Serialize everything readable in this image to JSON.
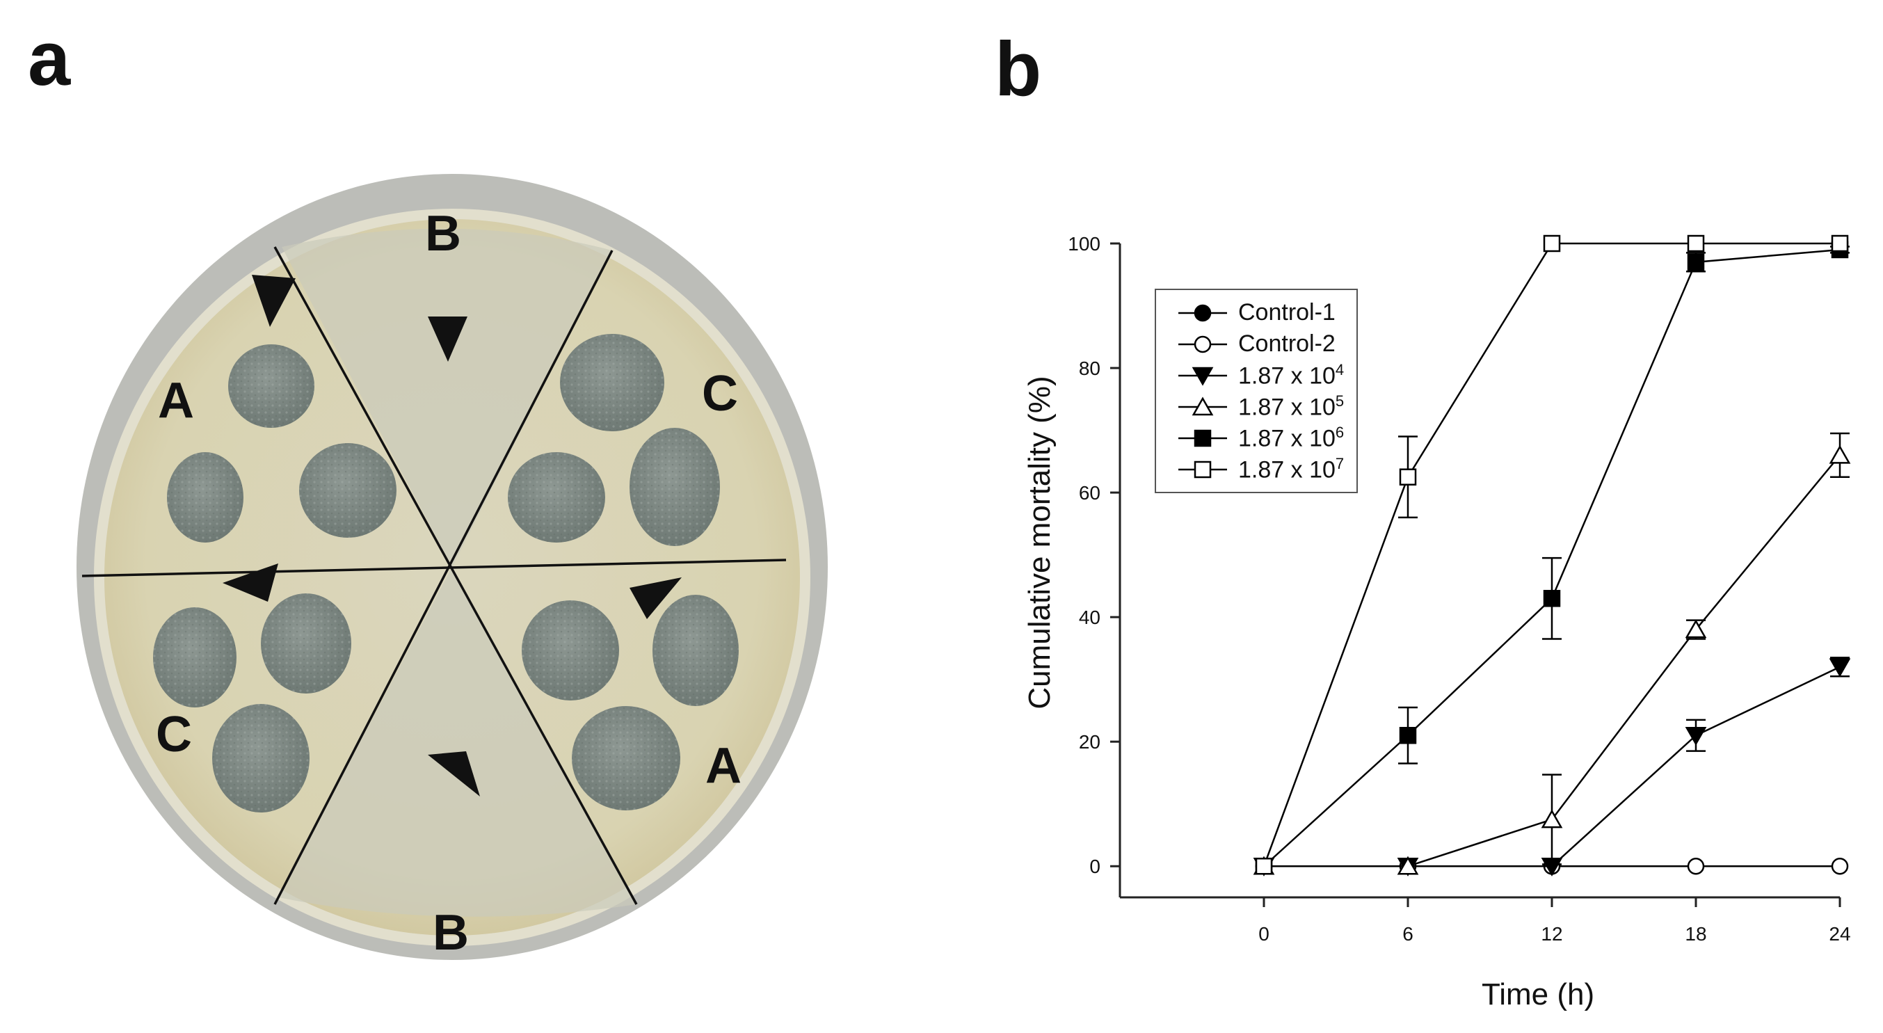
{
  "panels": {
    "a": {
      "letter": "a"
    },
    "b": {
      "letter": "b"
    }
  },
  "plate": {
    "segment_labels": [
      "B",
      "C",
      "A",
      "B",
      "C",
      "A"
    ],
    "colors": {
      "agar": "#d8d3b4",
      "rim": "#b9bab5",
      "colony": "#7f8a85",
      "clear_zone": "#c9c8b8"
    }
  },
  "chart_data": {
    "type": "line",
    "xlabel": "Time (h)",
    "ylabel": "Cumulative mortality (%)",
    "x": [
      0,
      6,
      12,
      18,
      24
    ],
    "xlim": [
      -6,
      24
    ],
    "ylim": [
      -5,
      100
    ],
    "xticks": [
      "0",
      "6",
      "12",
      "18",
      "24"
    ],
    "yticks": [
      "0",
      "20",
      "40",
      "60",
      "80",
      "100"
    ],
    "legend_position": "top-left",
    "series": [
      {
        "name": "Control-1",
        "base": "",
        "exp": "",
        "marker": "circle-filled",
        "values": [
          0,
          0,
          0,
          null,
          null
        ],
        "errors": [
          0,
          0,
          0,
          null,
          null
        ]
      },
      {
        "name": "Control-2",
        "base": "",
        "exp": "",
        "marker": "circle-open",
        "values": [
          0,
          0,
          0,
          0,
          0
        ],
        "errors": [
          0,
          0,
          0,
          0,
          0
        ]
      },
      {
        "name": "1.87 x 10",
        "base": "1.87 x 10",
        "exp": "4",
        "marker": "triangle-down-filled",
        "values": [
          0,
          0,
          0,
          21,
          32
        ],
        "errors": [
          0,
          0,
          0,
          2.5,
          1.5
        ]
      },
      {
        "name": "1.87 x 10",
        "base": "1.87 x 10",
        "exp": "5",
        "marker": "triangle-up-open",
        "values": [
          0,
          0,
          7.5,
          38,
          66
        ],
        "errors": [
          0,
          0,
          7.2,
          1.5,
          3.5
        ]
      },
      {
        "name": "1.87 x 10",
        "base": "1.87 x 10",
        "exp": "6",
        "marker": "square-filled",
        "values": [
          0,
          21,
          43,
          97,
          99
        ],
        "errors": [
          0,
          4.5,
          6.5,
          1.5,
          0.5
        ]
      },
      {
        "name": "1.87 x 10",
        "base": "1.87 x 10",
        "exp": "7",
        "marker": "square-open",
        "values": [
          0,
          62.5,
          100,
          100,
          100
        ],
        "errors": [
          0,
          6.5,
          0,
          0,
          0
        ]
      }
    ]
  }
}
